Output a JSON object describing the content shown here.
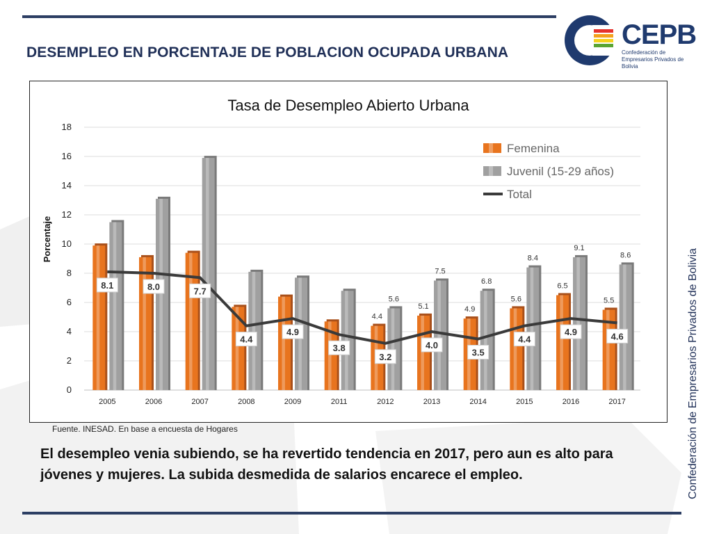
{
  "slide": {
    "title": "DESEMPLEO EN PORCENTAJE DE POBLACION OCUPADA URBANA",
    "side_text": "Confederación de Empresarios Privados de Bolivia",
    "source": "Fuente. INESAD. En base a encuesta de Hogares",
    "body": "El desempleo venia subiendo, se ha revertido tendencia en 2017, pero aun es alto para jóvenes y mujeres. La subida desmedida de salarios encarece el empleo."
  },
  "logo": {
    "name": "CEPB",
    "subtitle": "Confederación de Empresarios Privados de Bolivia",
    "colors": [
      "#1f3a6e",
      "#e5322d",
      "#f4a11c",
      "#f6d21c",
      "#5aa532"
    ]
  },
  "colors": {
    "rule": "#2c3e63",
    "title": "#1f2f57",
    "femenina": "#e8741e",
    "juvenil": "#a0a0a0",
    "total": "#3a3a3a"
  },
  "chart_data": {
    "type": "bar",
    "title": "Tasa de Desempleo Abierto Urbana",
    "xlabel": "",
    "ylabel": "Porcentaje",
    "ylim": [
      0,
      18
    ],
    "yticks": [
      0,
      2,
      4,
      6,
      8,
      10,
      12,
      14,
      16,
      18
    ],
    "grid": true,
    "legend_position": "top-right",
    "categories": [
      "2005",
      "2006",
      "2007",
      "2008",
      "2009",
      "2011",
      "2012",
      "2013",
      "2014",
      "2015",
      "2016",
      "2017"
    ],
    "series": [
      {
        "name": "Femenina",
        "kind": "bar",
        "color": "#e8741e",
        "values": [
          9.9,
          9.1,
          9.4,
          5.7,
          6.4,
          4.7,
          4.4,
          5.1,
          4.9,
          5.6,
          6.5,
          5.5
        ],
        "labels": [
          "",
          "",
          "",
          "",
          "",
          "",
          "4.4",
          "5.1",
          "4.9",
          "5.6",
          "6.5",
          "5.5"
        ]
      },
      {
        "name": "Juvenil (15-29 años)",
        "kind": "bar",
        "color": "#a0a0a0",
        "values": [
          11.5,
          13.1,
          15.9,
          8.1,
          7.7,
          6.8,
          5.6,
          7.5,
          6.8,
          8.4,
          9.1,
          8.6
        ],
        "labels": [
          "",
          "",
          "",
          "",
          "",
          "",
          "5.6",
          "7.5",
          "6.8",
          "8.4",
          "9.1",
          "8.6"
        ]
      },
      {
        "name": "Total",
        "kind": "line",
        "color": "#3a3a3a",
        "values": [
          8.1,
          8.0,
          7.7,
          4.4,
          4.9,
          3.8,
          3.2,
          4.0,
          3.5,
          4.4,
          4.9,
          4.6
        ],
        "labels": [
          "8.1",
          "8.0",
          "7.7",
          "4.4",
          "4.9",
          "3.8",
          "3.2",
          "4.0",
          "3.5",
          "4.4",
          "4.9",
          "4.6"
        ]
      }
    ]
  }
}
